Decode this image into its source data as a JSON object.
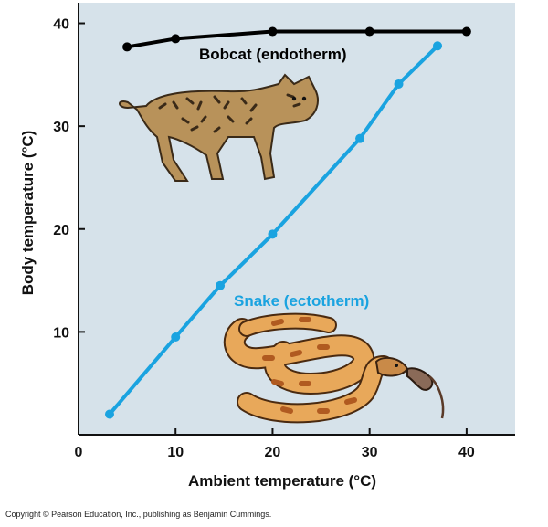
{
  "chart_data": {
    "type": "line",
    "xlabel": "Ambient temperature (°C)",
    "ylabel": "Body temperature (°C)",
    "xlim": [
      0,
      45
    ],
    "ylim": [
      0,
      42
    ],
    "x_ticks": [
      0,
      10,
      20,
      30,
      40
    ],
    "y_ticks": [
      10,
      20,
      30,
      40
    ],
    "grid": false,
    "background_color": "#d6e2ea",
    "series": [
      {
        "name": "Bobcat (endotherm)",
        "color": "#000000",
        "points": [
          [
            5,
            37.7
          ],
          [
            10,
            38.5
          ],
          [
            20,
            39.2
          ],
          [
            30,
            39.2
          ],
          [
            40,
            39.2
          ]
        ]
      },
      {
        "name": "Snake (ectotherm)",
        "color": "#1aa3e0",
        "points": [
          [
            3.2,
            2
          ],
          [
            10,
            9.5
          ],
          [
            14.6,
            14.5
          ],
          [
            20,
            19.5
          ],
          [
            29,
            28.8
          ],
          [
            33,
            34.1
          ],
          [
            37,
            37.8
          ]
        ]
      }
    ],
    "illustrations": [
      "bobcat",
      "snake"
    ]
  },
  "footer": {
    "copyright": "Copyright © Pearson Education, Inc., publishing as Benjamin Cummings."
  }
}
